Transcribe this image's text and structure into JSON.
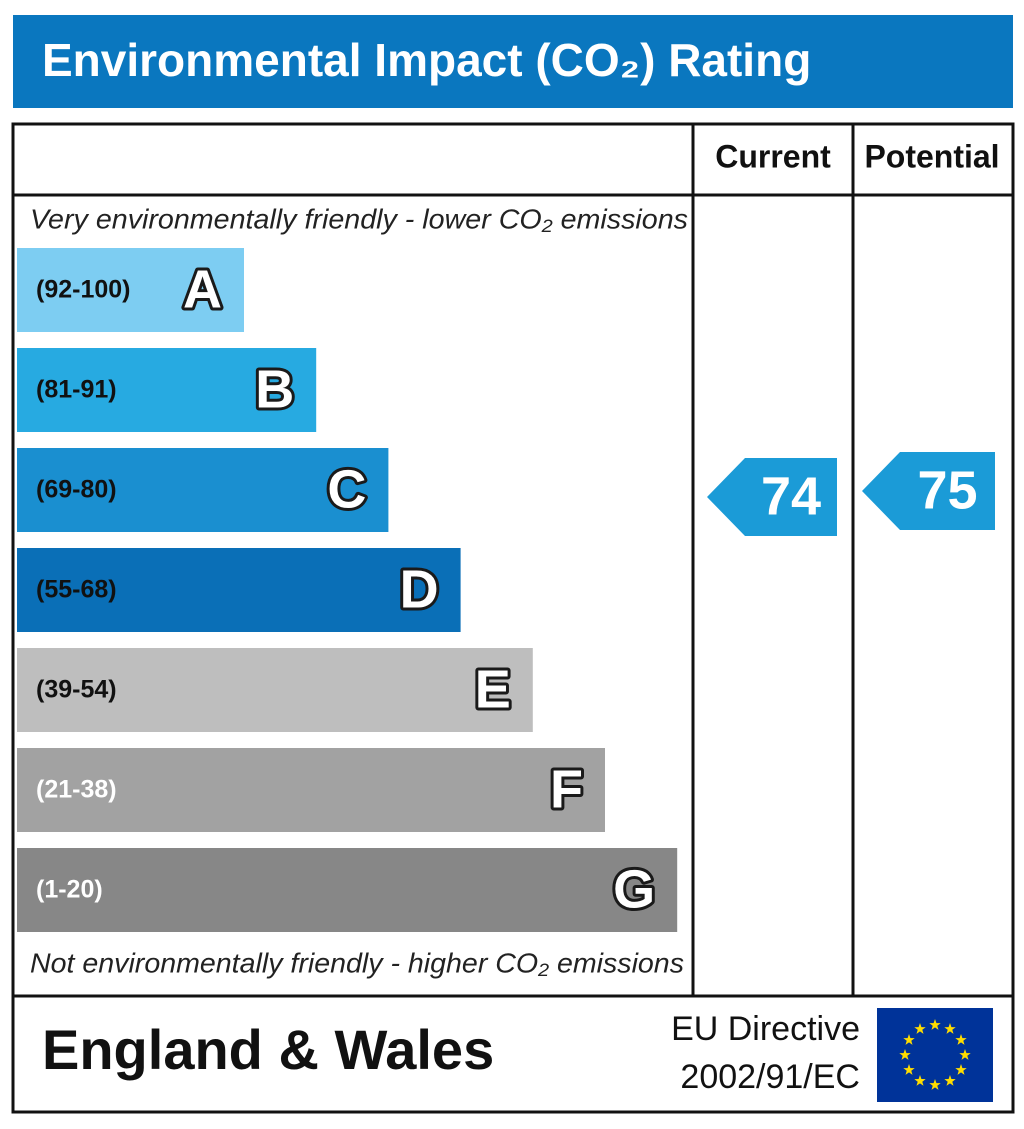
{
  "chart_data": {
    "type": "rating",
    "title": "Environmental Impact (CO₂) Rating",
    "columns": [
      "Current",
      "Potential"
    ],
    "top_note": "Very environmentally friendly - lower CO₂ emissions",
    "bottom_note": "Not environmentally friendly - higher CO₂ emissions",
    "bands": [
      {
        "range": "(92-100)",
        "letter": "A",
        "color": "#7dcdf2",
        "text_color": "#111111"
      },
      {
        "range": "(81-91)",
        "letter": "B",
        "color": "#27aae1",
        "text_color": "#111111"
      },
      {
        "range": "(69-80)",
        "letter": "C",
        "color": "#1a8fd0",
        "text_color": "#111111"
      },
      {
        "range": "(55-68)",
        "letter": "D",
        "color": "#0a6fb7",
        "text_color": "#111111"
      },
      {
        "range": "(39-54)",
        "letter": "E",
        "color": "#bebebe",
        "text_color": "#111111"
      },
      {
        "range": "(21-38)",
        "letter": "F",
        "color": "#a2a2a2",
        "text_color": "#ffffff"
      },
      {
        "range": "(1-20)",
        "letter": "G",
        "color": "#878787",
        "text_color": "#ffffff"
      }
    ],
    "ratings": [
      {
        "value": 74,
        "color": "#1b9bd7"
      },
      {
        "value": 75,
        "color": "#1b9bd7"
      }
    ],
    "footer": {
      "region": "England & Wales",
      "directive": [
        "EU Directive",
        "2002/91/EC"
      ]
    }
  }
}
